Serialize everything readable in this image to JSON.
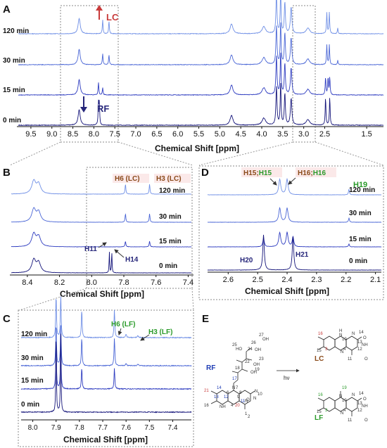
{
  "panels": [
    {
      "letter": "A"
    },
    {
      "letter": "B"
    },
    {
      "letter": "C"
    },
    {
      "letter": "D"
    },
    {
      "letter": "E"
    }
  ],
  "axis_title": "Chemical Shift [ppm]",
  "colors": {
    "t120": "#6f8fe6",
    "t30": "#4a66d6",
    "t15": "#2e3cc0",
    "t0": "#14147a",
    "LC": "#c83a3a",
    "LF": "#2a9a2a",
    "H": "#26267a"
  },
  "chart_data": [
    {
      "type": "line",
      "panel": "A",
      "xlabel": "Chemical Shift [ppm]",
      "xlim": [
        9.8,
        1.1
      ],
      "xticks": [
        "9.5",
        "9.0",
        "8.5",
        "8.0",
        "7.5",
        "7.0",
        "6.5",
        "6.0",
        "5.5",
        "5.0",
        "4.5",
        "4.0",
        "3.5",
        "3.0",
        "2.5",
        "1.5"
      ],
      "series": [
        {
          "name": "120 min"
        },
        {
          "name": "30 min"
        },
        {
          "name": "15 min"
        },
        {
          "name": "0 min"
        }
      ],
      "annotations": [
        "LC",
        "RF"
      ]
    },
    {
      "type": "line",
      "panel": "B",
      "xlabel": "Chemical Shift [ppm]",
      "xlim": [
        8.5,
        7.38
      ],
      "xticks": [
        "8.4",
        "8.2",
        "8.0",
        "7.8",
        "7.6",
        "7.4"
      ],
      "series": [
        {
          "name": "120 min"
        },
        {
          "name": "30 min"
        },
        {
          "name": "15 min"
        },
        {
          "name": "0 min"
        }
      ],
      "annotations": [
        "H6 (LC)",
        "H3 (LC)",
        "H11",
        "H14"
      ],
      "peaks_ppm": {
        "H11": 7.89,
        "H14": 7.87,
        "H6_LC": 7.79,
        "H3_LC": 7.64,
        "main": 8.35
      }
    },
    {
      "type": "line",
      "panel": "C",
      "xlabel": "Chemical Shift [ppm]",
      "xlim": [
        8.05,
        7.32
      ],
      "xticks": [
        "8.0",
        "7.9",
        "7.8",
        "7.7",
        "7.6",
        "7.5",
        "7.4"
      ],
      "series": [
        {
          "name": "120 min"
        },
        {
          "name": "30 min"
        },
        {
          "name": "15 min"
        },
        {
          "name": "0 min"
        }
      ],
      "annotations": [
        "H6 (LF)",
        "H3 (LF)"
      ],
      "peaks_ppm": {
        "a": 7.9,
        "b": 7.88,
        "c": 7.79,
        "d": 7.65,
        "H6_LF": 7.6,
        "H3_LF": 7.55
      }
    },
    {
      "type": "line",
      "panel": "D",
      "xlabel": "Chemical Shift [ppm]",
      "xlim": [
        2.67,
        2.08
      ],
      "xticks": [
        "2.6",
        "2.5",
        "2.4",
        "2.3",
        "2.2",
        "2.1"
      ],
      "series": [
        {
          "name": "120 min"
        },
        {
          "name": "30 min"
        },
        {
          "name": "15 min"
        },
        {
          "name": "0 min"
        }
      ],
      "annotations": [
        "H15;",
        "H15",
        "H16;",
        "H16",
        "H19",
        "H20",
        "H21"
      ],
      "peaks_ppm": {
        "H20": 2.48,
        "H21": 2.38,
        "H15": 2.425,
        "H16": 2.4,
        "H19": 2.19
      }
    }
  ],
  "scheme": {
    "rf_label": "RF",
    "lc_label": "LC",
    "lf_label": "LF",
    "arrow_label": "hν",
    "rf_numbers": [
      "27",
      "OH",
      "26",
      "25",
      "HO",
      "OH",
      "24",
      "23",
      "22",
      "OH",
      "18",
      "OH",
      "19",
      "17",
      "21",
      "14",
      "13",
      "12",
      "6",
      "N",
      "7",
      "8",
      "9",
      "N",
      "10",
      "N",
      "O",
      "16",
      "NH",
      "4",
      "20",
      "11",
      "N",
      "1",
      "2",
      "3",
      "O",
      "15"
    ],
    "lc_numbers": [
      "H",
      "N",
      "10",
      "N",
      "14",
      "16",
      "O",
      "13",
      "NH",
      "12",
      "O",
      "15",
      "3",
      "N",
      "4",
      "11"
    ],
    "lf_numbers": [
      "19",
      "N",
      "10",
      "N",
      "14",
      "16",
      "O",
      "13",
      "NH",
      "12",
      "O",
      "15",
      "3",
      "N",
      "4",
      "11"
    ]
  }
}
